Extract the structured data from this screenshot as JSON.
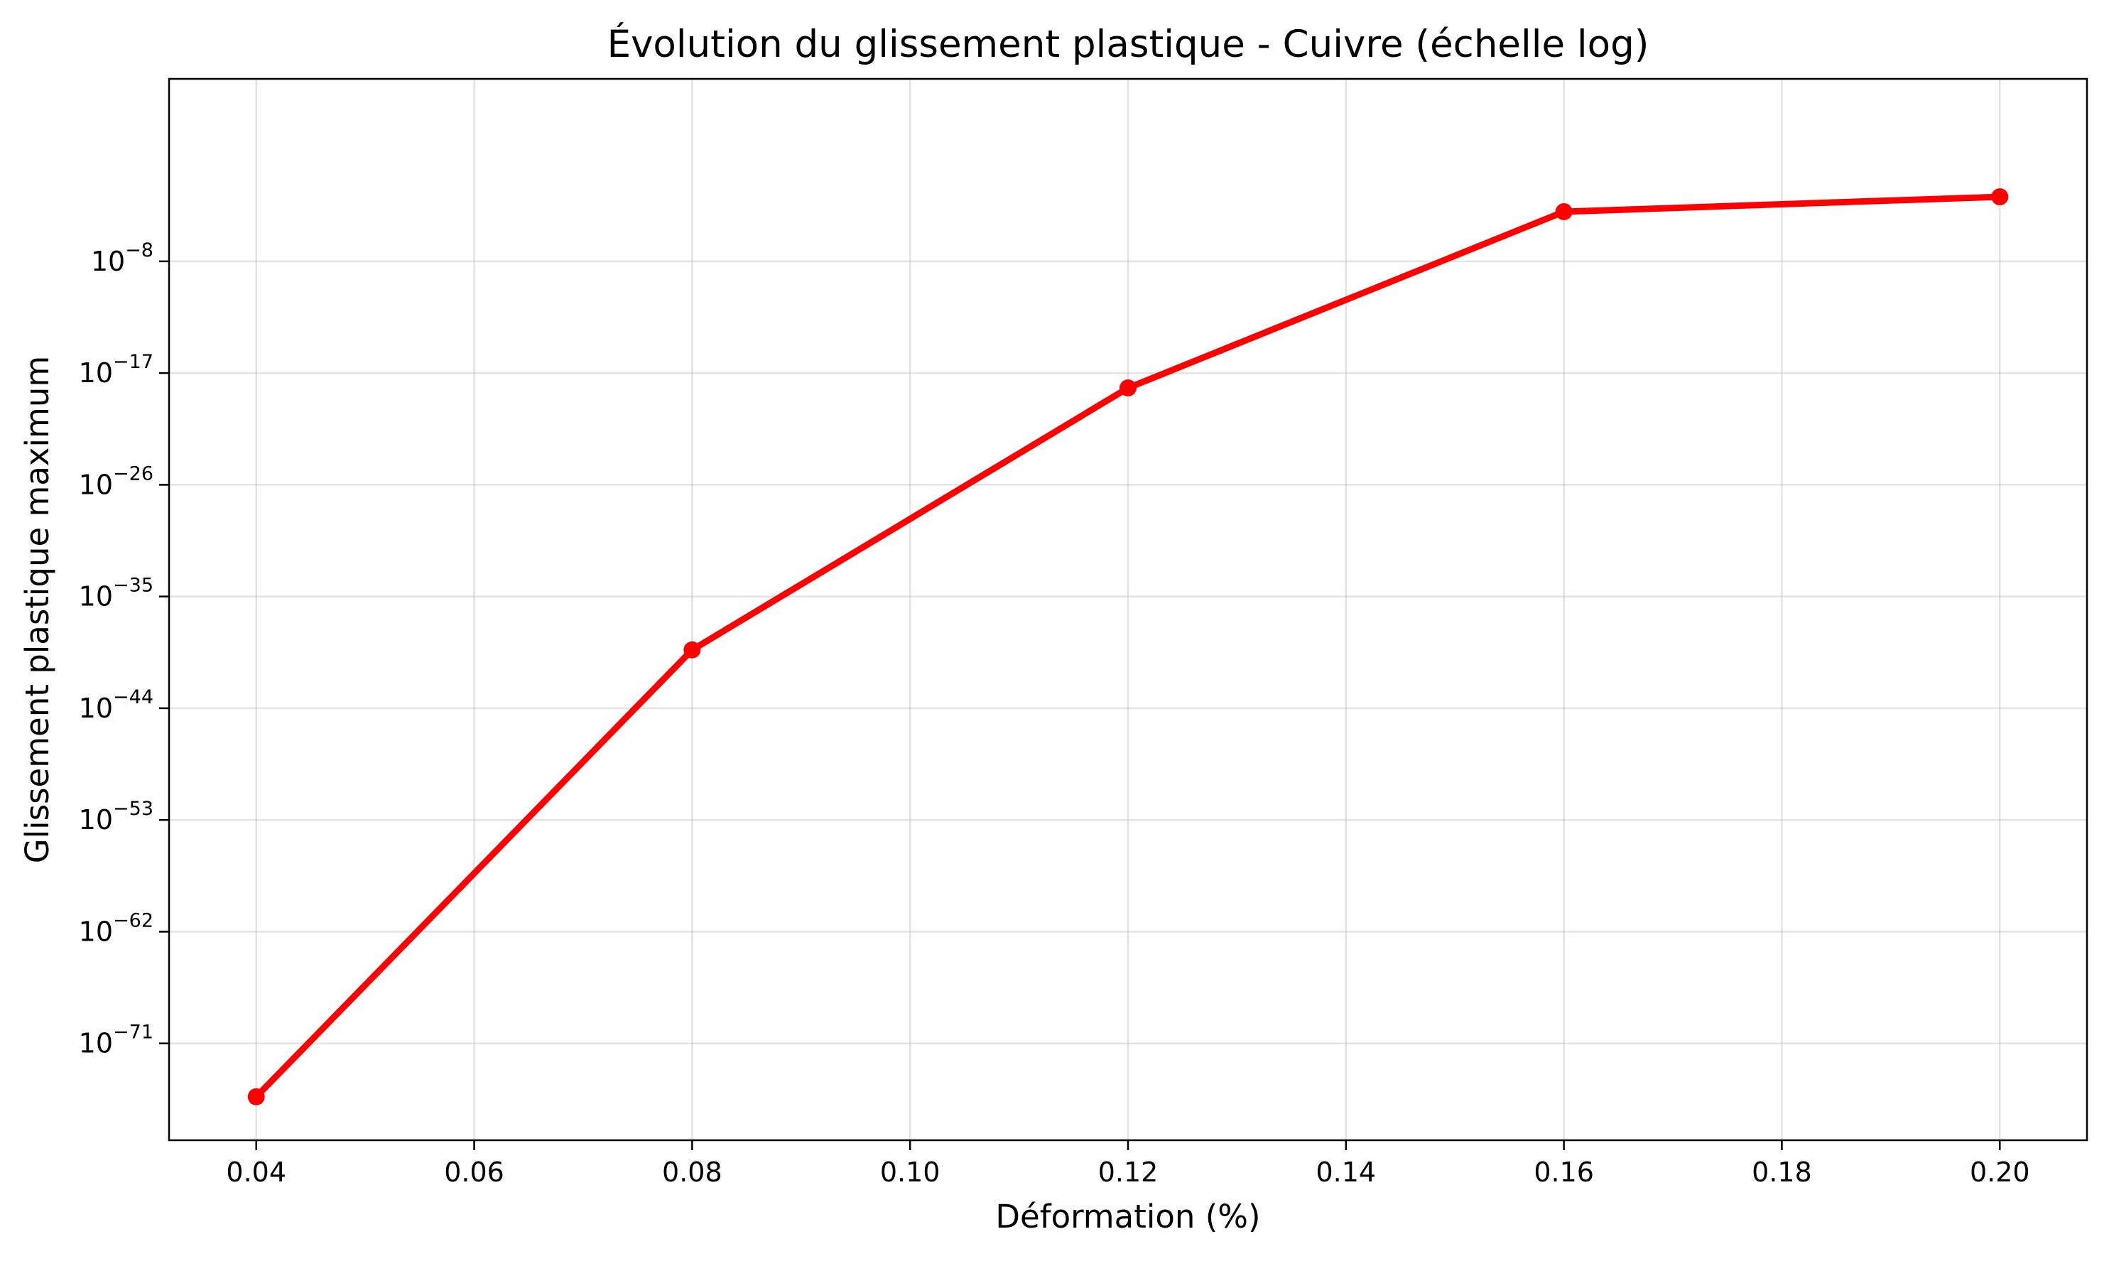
{
  "chart_data": {
    "type": "line",
    "title": "Évolution du glissement plastique - Cuivre (échelle log)",
    "xlabel": "Déformation (%)",
    "ylabel": "Glissement plastique maximum",
    "yscale": "log",
    "xlim": [
      0.032,
      0.208
    ],
    "ylim_log10": [
      -78.8,
      6.7
    ],
    "x_ticks": [
      {
        "value": 0.04,
        "label": "0.04"
      },
      {
        "value": 0.06,
        "label": "0.06"
      },
      {
        "value": 0.08,
        "label": "0.08"
      },
      {
        "value": 0.1,
        "label": "0.10"
      },
      {
        "value": 0.12,
        "label": "0.12"
      },
      {
        "value": 0.14,
        "label": "0.14"
      },
      {
        "value": 0.16,
        "label": "0.16"
      },
      {
        "value": 0.18,
        "label": "0.18"
      },
      {
        "value": 0.2,
        "label": "0.20"
      }
    ],
    "y_ticks": [
      {
        "exponent": -8,
        "base": "10",
        "exp_label": "−8"
      },
      {
        "exponent": -17,
        "base": "10",
        "exp_label": "−17"
      },
      {
        "exponent": -26,
        "base": "10",
        "exp_label": "−26"
      },
      {
        "exponent": -35,
        "base": "10",
        "exp_label": "−35"
      },
      {
        "exponent": -44,
        "base": "10",
        "exp_label": "−44"
      },
      {
        "exponent": -53,
        "base": "10",
        "exp_label": "−53"
      },
      {
        "exponent": -62,
        "base": "10",
        "exp_label": "−62"
      },
      {
        "exponent": -71,
        "base": "10",
        "exp_label": "−71"
      }
    ],
    "grid": true,
    "series": [
      {
        "color": "#ff0000",
        "marker": "circle",
        "x": [
          0.04,
          0.08,
          0.12,
          0.16,
          0.2
        ],
        "log10_y": [
          -75.3,
          -39.3,
          -18.2,
          -4.0,
          -2.8
        ]
      }
    ]
  }
}
